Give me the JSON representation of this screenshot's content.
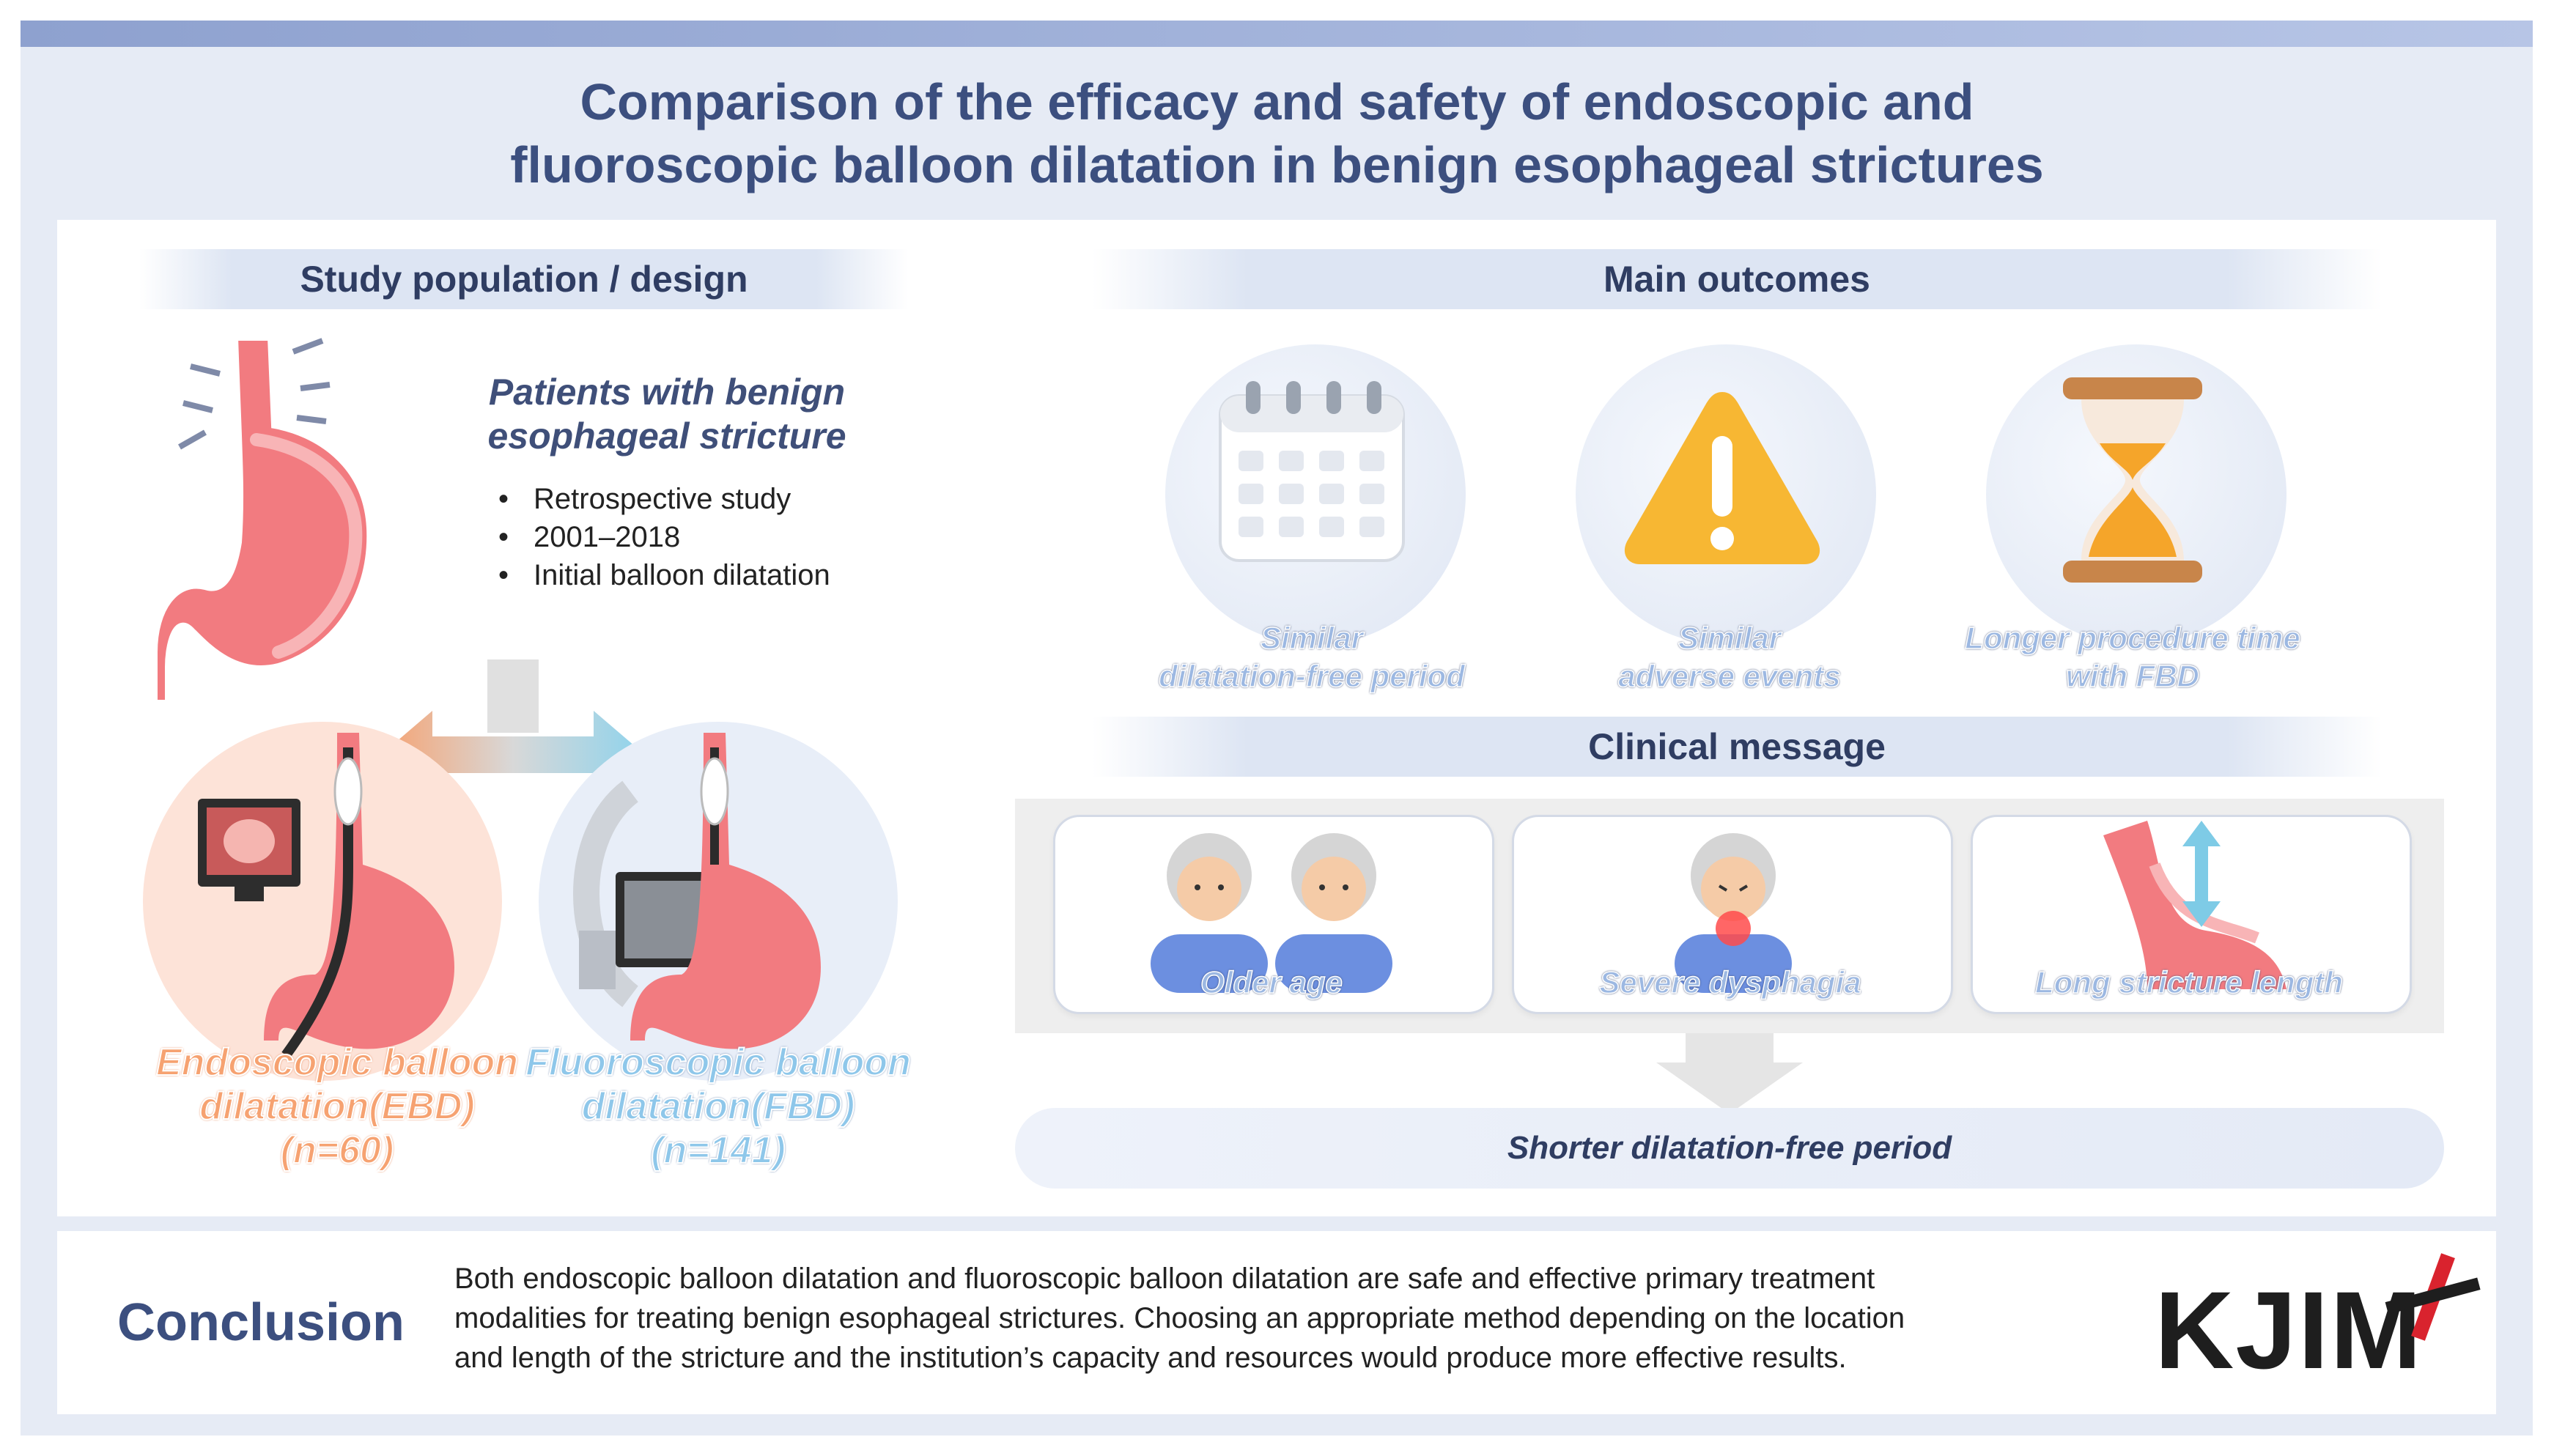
{
  "title": {
    "line1": "Comparison of the efficacy and safety of endoscopic and",
    "line2": "fluoroscopic balloon dilatation in benign esophageal strictures"
  },
  "study": {
    "header": "Study population / design",
    "patients_line1": "Patients with benign",
    "patients_line2": "esophageal stricture",
    "bullets": [
      "Retrospective study",
      "2001–2018",
      "Initial balloon dilatation"
    ],
    "ebd": {
      "line1": "Endoscopic balloon",
      "line2": "dilatation(EBD)",
      "n": "(n=60)"
    },
    "fbd": {
      "line1": "Fluoroscopic balloon",
      "line2": "dilatation(FBD)",
      "n": "(n=141)"
    }
  },
  "outcomes": {
    "header": "Main outcomes",
    "items": [
      {
        "line1": "Similar",
        "line2": "dilatation-free period",
        "icon": "calendar-icon"
      },
      {
        "line1": "Similar",
        "line2": "adverse events",
        "icon": "warning-icon"
      },
      {
        "line1": "Longer procedure time",
        "line2": "with FBD",
        "icon": "hourglass-icon"
      }
    ]
  },
  "clinical": {
    "header": "Clinical message",
    "cards": [
      {
        "label": "Older age",
        "icon": "elderly-people-icon"
      },
      {
        "label": "Severe dysphagia",
        "icon": "dysphagia-person-icon"
      },
      {
        "label": "Long stricture length",
        "icon": "stricture-length-icon"
      }
    ],
    "result": "Shorter dilatation-free period"
  },
  "conclusion": {
    "heading": "Conclusion",
    "line1": "Both endoscopic balloon dilatation and fluoroscopic balloon dilatation are safe and effective primary treatment",
    "line2": "modalities for treating benign esophageal strictures.  Choosing an appropriate method depending on the location",
    "line3": "and length of the stricture and the institution’s capacity and resources  would produce more effective results.",
    "logo_text": "KJIM"
  },
  "colors": {
    "title": "#3c4f7f",
    "stomach": "#f27b80",
    "ebd_accent": "#f6a271",
    "fbd_accent": "#8ec7ea",
    "warning": "#f7b733",
    "logo_cross": "#d9232e"
  }
}
